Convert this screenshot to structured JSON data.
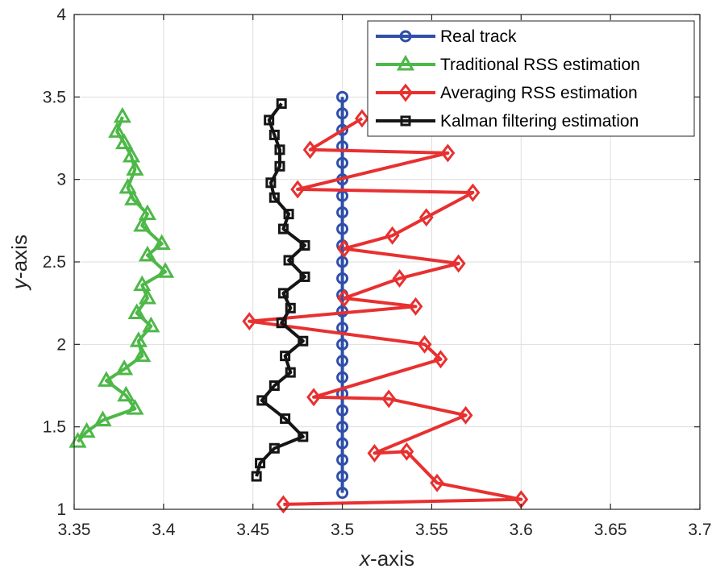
{
  "chart_data": {
    "type": "line",
    "title": "",
    "xlabel_italic": "x",
    "xlabel_rest": "-axis",
    "ylabel_italic": "y",
    "ylabel_rest": "-axis",
    "xlim": [
      3.35,
      3.7
    ],
    "ylim": [
      1,
      4
    ],
    "xticks": [
      3.35,
      3.4,
      3.45,
      3.5,
      3.55,
      3.6,
      3.65,
      3.7
    ],
    "yticks": [
      1,
      1.5,
      2,
      2.5,
      3,
      3.5,
      4
    ],
    "xtick_labels": [
      "3.35",
      "3.4",
      "3.45",
      "3.5",
      "3.55",
      "3.6",
      "3.65",
      "3.7"
    ],
    "ytick_labels": [
      "1",
      "1.5",
      "2",
      "2.5",
      "3",
      "3.5",
      "4"
    ],
    "grid": true,
    "legend_position": "top-right",
    "series": [
      {
        "name": "Real track",
        "color": "#2f4fa8",
        "marker": "circle",
        "x": [
          3.5,
          3.5,
          3.5,
          3.5,
          3.5,
          3.5,
          3.5,
          3.5,
          3.5,
          3.5,
          3.5,
          3.5,
          3.5,
          3.5,
          3.5,
          3.5,
          3.5,
          3.5,
          3.5,
          3.5,
          3.5,
          3.5,
          3.5,
          3.5,
          3.5
        ],
        "y": [
          3.5,
          3.4,
          3.3,
          3.2,
          3.1,
          3.0,
          2.9,
          2.8,
          2.7,
          2.6,
          2.5,
          2.4,
          2.3,
          2.2,
          2.1,
          2.0,
          1.9,
          1.8,
          1.7,
          1.6,
          1.5,
          1.4,
          1.3,
          1.2,
          1.1
        ]
      },
      {
        "name": "Traditional RSS estimation",
        "color": "#4db848",
        "marker": "triangle",
        "x": [
          3.377,
          3.374,
          3.378,
          3.382,
          3.384,
          3.38,
          3.383,
          3.391,
          3.388,
          3.399,
          3.391,
          3.401,
          3.388,
          3.391,
          3.385,
          3.393,
          3.386,
          3.388,
          3.378,
          3.368,
          3.379,
          3.384,
          3.366,
          3.357,
          3.352
        ],
        "y": [
          3.38,
          3.29,
          3.22,
          3.14,
          3.06,
          2.95,
          2.88,
          2.79,
          2.72,
          2.61,
          2.54,
          2.44,
          2.36,
          2.28,
          2.19,
          2.11,
          2.02,
          1.93,
          1.85,
          1.78,
          1.69,
          1.61,
          1.54,
          1.47,
          1.41
        ]
      },
      {
        "name": "Averaging RSS estimation",
        "color": "#e83030",
        "marker": "diamond",
        "x": [
          3.511,
          3.482,
          3.559,
          3.475,
          3.573,
          3.547,
          3.528,
          3.501,
          3.565,
          3.532,
          3.501,
          3.541,
          3.448,
          3.546,
          3.555,
          3.484,
          3.526,
          3.569,
          3.518,
          3.536,
          3.553,
          3.6,
          3.467
        ],
        "y": [
          3.37,
          3.18,
          3.16,
          2.94,
          2.92,
          2.77,
          2.66,
          2.58,
          2.49,
          2.4,
          2.28,
          2.23,
          2.14,
          2.0,
          1.91,
          1.68,
          1.67,
          1.57,
          1.34,
          1.35,
          1.16,
          1.06,
          1.03
        ]
      },
      {
        "name": "Kalman filtering estimation",
        "color": "#151515",
        "marker": "square",
        "x": [
          3.466,
          3.459,
          3.462,
          3.465,
          3.465,
          3.46,
          3.462,
          3.47,
          3.467,
          3.479,
          3.47,
          3.479,
          3.467,
          3.471,
          3.466,
          3.478,
          3.468,
          3.471,
          3.462,
          3.455,
          3.468,
          3.478,
          3.462,
          3.454,
          3.452
        ],
        "y": [
          3.46,
          3.36,
          3.27,
          3.18,
          3.08,
          2.98,
          2.89,
          2.79,
          2.7,
          2.6,
          2.51,
          2.41,
          2.31,
          2.22,
          2.13,
          2.02,
          1.93,
          1.83,
          1.75,
          1.66,
          1.55,
          1.44,
          1.37,
          1.28,
          1.2
        ]
      }
    ]
  }
}
